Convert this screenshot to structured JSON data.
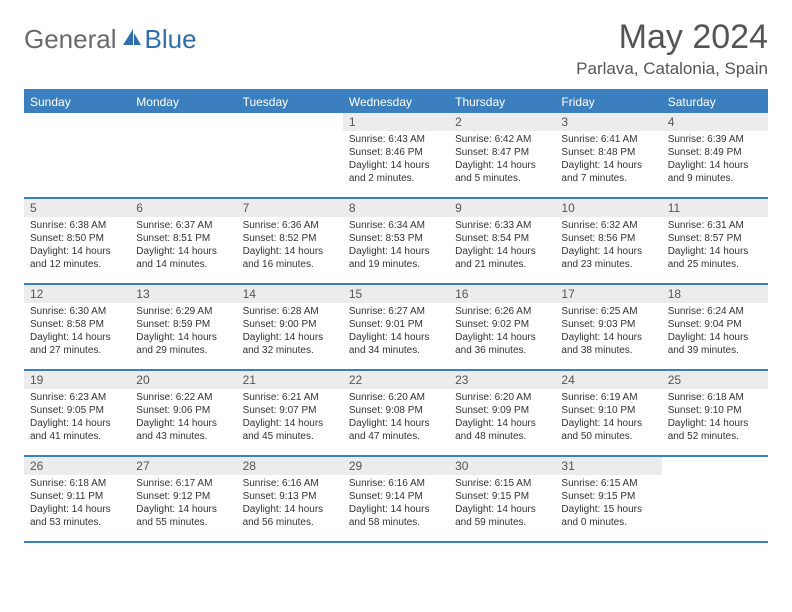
{
  "logo": {
    "general": "General",
    "blue": "Blue"
  },
  "title": "May 2024",
  "location": "Parlava, Catalonia, Spain",
  "dayNames": [
    "Sunday",
    "Monday",
    "Tuesday",
    "Wednesday",
    "Thursday",
    "Friday",
    "Saturday"
  ],
  "colors": {
    "header_bg": "#3b7fbf",
    "header_text": "#ffffff",
    "daynum_bg": "#ececec",
    "border": "#3b7fbf",
    "body_text": "#333333",
    "title_text": "#555555",
    "logo_general": "#6a6a6a",
    "logo_blue": "#2f6fb0"
  },
  "weeks": [
    [
      {
        "n": "",
        "sr": "",
        "ss": "",
        "dl": ""
      },
      {
        "n": "",
        "sr": "",
        "ss": "",
        "dl": ""
      },
      {
        "n": "",
        "sr": "",
        "ss": "",
        "dl": ""
      },
      {
        "n": "1",
        "sr": "Sunrise: 6:43 AM",
        "ss": "Sunset: 8:46 PM",
        "dl": "Daylight: 14 hours and 2 minutes."
      },
      {
        "n": "2",
        "sr": "Sunrise: 6:42 AM",
        "ss": "Sunset: 8:47 PM",
        "dl": "Daylight: 14 hours and 5 minutes."
      },
      {
        "n": "3",
        "sr": "Sunrise: 6:41 AM",
        "ss": "Sunset: 8:48 PM",
        "dl": "Daylight: 14 hours and 7 minutes."
      },
      {
        "n": "4",
        "sr": "Sunrise: 6:39 AM",
        "ss": "Sunset: 8:49 PM",
        "dl": "Daylight: 14 hours and 9 minutes."
      }
    ],
    [
      {
        "n": "5",
        "sr": "Sunrise: 6:38 AM",
        "ss": "Sunset: 8:50 PM",
        "dl": "Daylight: 14 hours and 12 minutes."
      },
      {
        "n": "6",
        "sr": "Sunrise: 6:37 AM",
        "ss": "Sunset: 8:51 PM",
        "dl": "Daylight: 14 hours and 14 minutes."
      },
      {
        "n": "7",
        "sr": "Sunrise: 6:36 AM",
        "ss": "Sunset: 8:52 PM",
        "dl": "Daylight: 14 hours and 16 minutes."
      },
      {
        "n": "8",
        "sr": "Sunrise: 6:34 AM",
        "ss": "Sunset: 8:53 PM",
        "dl": "Daylight: 14 hours and 19 minutes."
      },
      {
        "n": "9",
        "sr": "Sunrise: 6:33 AM",
        "ss": "Sunset: 8:54 PM",
        "dl": "Daylight: 14 hours and 21 minutes."
      },
      {
        "n": "10",
        "sr": "Sunrise: 6:32 AM",
        "ss": "Sunset: 8:56 PM",
        "dl": "Daylight: 14 hours and 23 minutes."
      },
      {
        "n": "11",
        "sr": "Sunrise: 6:31 AM",
        "ss": "Sunset: 8:57 PM",
        "dl": "Daylight: 14 hours and 25 minutes."
      }
    ],
    [
      {
        "n": "12",
        "sr": "Sunrise: 6:30 AM",
        "ss": "Sunset: 8:58 PM",
        "dl": "Daylight: 14 hours and 27 minutes."
      },
      {
        "n": "13",
        "sr": "Sunrise: 6:29 AM",
        "ss": "Sunset: 8:59 PM",
        "dl": "Daylight: 14 hours and 29 minutes."
      },
      {
        "n": "14",
        "sr": "Sunrise: 6:28 AM",
        "ss": "Sunset: 9:00 PM",
        "dl": "Daylight: 14 hours and 32 minutes."
      },
      {
        "n": "15",
        "sr": "Sunrise: 6:27 AM",
        "ss": "Sunset: 9:01 PM",
        "dl": "Daylight: 14 hours and 34 minutes."
      },
      {
        "n": "16",
        "sr": "Sunrise: 6:26 AM",
        "ss": "Sunset: 9:02 PM",
        "dl": "Daylight: 14 hours and 36 minutes."
      },
      {
        "n": "17",
        "sr": "Sunrise: 6:25 AM",
        "ss": "Sunset: 9:03 PM",
        "dl": "Daylight: 14 hours and 38 minutes."
      },
      {
        "n": "18",
        "sr": "Sunrise: 6:24 AM",
        "ss": "Sunset: 9:04 PM",
        "dl": "Daylight: 14 hours and 39 minutes."
      }
    ],
    [
      {
        "n": "19",
        "sr": "Sunrise: 6:23 AM",
        "ss": "Sunset: 9:05 PM",
        "dl": "Daylight: 14 hours and 41 minutes."
      },
      {
        "n": "20",
        "sr": "Sunrise: 6:22 AM",
        "ss": "Sunset: 9:06 PM",
        "dl": "Daylight: 14 hours and 43 minutes."
      },
      {
        "n": "21",
        "sr": "Sunrise: 6:21 AM",
        "ss": "Sunset: 9:07 PM",
        "dl": "Daylight: 14 hours and 45 minutes."
      },
      {
        "n": "22",
        "sr": "Sunrise: 6:20 AM",
        "ss": "Sunset: 9:08 PM",
        "dl": "Daylight: 14 hours and 47 minutes."
      },
      {
        "n": "23",
        "sr": "Sunrise: 6:20 AM",
        "ss": "Sunset: 9:09 PM",
        "dl": "Daylight: 14 hours and 48 minutes."
      },
      {
        "n": "24",
        "sr": "Sunrise: 6:19 AM",
        "ss": "Sunset: 9:10 PM",
        "dl": "Daylight: 14 hours and 50 minutes."
      },
      {
        "n": "25",
        "sr": "Sunrise: 6:18 AM",
        "ss": "Sunset: 9:10 PM",
        "dl": "Daylight: 14 hours and 52 minutes."
      }
    ],
    [
      {
        "n": "26",
        "sr": "Sunrise: 6:18 AM",
        "ss": "Sunset: 9:11 PM",
        "dl": "Daylight: 14 hours and 53 minutes."
      },
      {
        "n": "27",
        "sr": "Sunrise: 6:17 AM",
        "ss": "Sunset: 9:12 PM",
        "dl": "Daylight: 14 hours and 55 minutes."
      },
      {
        "n": "28",
        "sr": "Sunrise: 6:16 AM",
        "ss": "Sunset: 9:13 PM",
        "dl": "Daylight: 14 hours and 56 minutes."
      },
      {
        "n": "29",
        "sr": "Sunrise: 6:16 AM",
        "ss": "Sunset: 9:14 PM",
        "dl": "Daylight: 14 hours and 58 minutes."
      },
      {
        "n": "30",
        "sr": "Sunrise: 6:15 AM",
        "ss": "Sunset: 9:15 PM",
        "dl": "Daylight: 14 hours and 59 minutes."
      },
      {
        "n": "31",
        "sr": "Sunrise: 6:15 AM",
        "ss": "Sunset: 9:15 PM",
        "dl": "Daylight: 15 hours and 0 minutes."
      },
      {
        "n": "",
        "sr": "",
        "ss": "",
        "dl": ""
      }
    ]
  ]
}
